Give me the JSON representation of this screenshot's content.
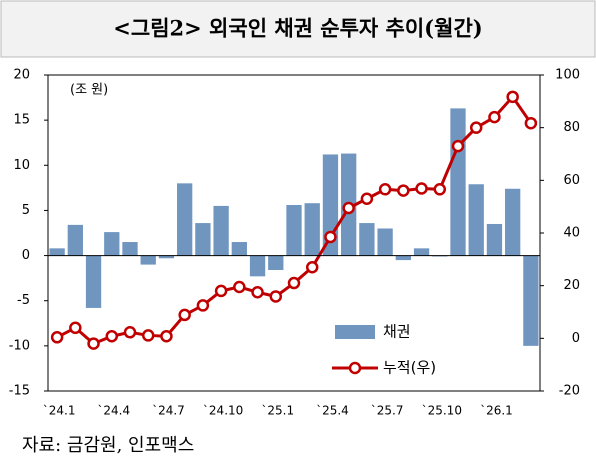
{
  "chart_data": {
    "type": "bar_line",
    "title": "<그림2> 외국인 채권 순투자 추이(월간)",
    "y_label": "(조 원)",
    "source": "자료: 금감원, 인포맥스",
    "categories": [
      "`24.1",
      null,
      null,
      "`24.4",
      null,
      null,
      "`24.7",
      null,
      null,
      "`24.10",
      null,
      null,
      "`25.1",
      null,
      null,
      "`25.4",
      null,
      null,
      "`25.7",
      null,
      null,
      "`25.10",
      null,
      null,
      "`26.1",
      null,
      null
    ],
    "series": [
      {
        "name": "채권",
        "color": "#7096c0",
        "type": "bar",
        "values": [
          0.8,
          3.4,
          -5.8,
          2.6,
          1.5,
          -1.0,
          -0.3,
          8.0,
          3.6,
          5.5,
          1.5,
          -2.3,
          -1.6,
          5.6,
          5.8,
          11.2,
          11.3,
          3.6,
          3.0,
          -0.5,
          0.8,
          -0.1,
          16.3,
          7.9,
          3.5,
          7.4,
          -10.0
        ]
      },
      {
        "name": "누적(우)",
        "color": "#c00000",
        "type": "line",
        "axis": "y2",
        "values": [
          0.4,
          4.0,
          -2.0,
          0.8,
          2.3,
          1.1,
          0.8,
          8.9,
          12.5,
          18.0,
          19.5,
          17.5,
          15.9,
          21.0,
          27.0,
          38.5,
          49.5,
          53.0,
          56.6,
          56.1,
          56.9,
          56.6,
          73.0,
          80.0,
          84.0,
          91.7,
          81.7
        ]
      }
    ],
    "ylim": [
      -15,
      20
    ],
    "yticks": [
      -15,
      -10,
      -5,
      0,
      5,
      10,
      15,
      20
    ],
    "y2lim": [
      -20,
      100
    ],
    "y2ticks": [
      -20,
      0,
      20,
      40,
      60,
      80,
      100
    ],
    "legend": "inside-bottom-right"
  }
}
